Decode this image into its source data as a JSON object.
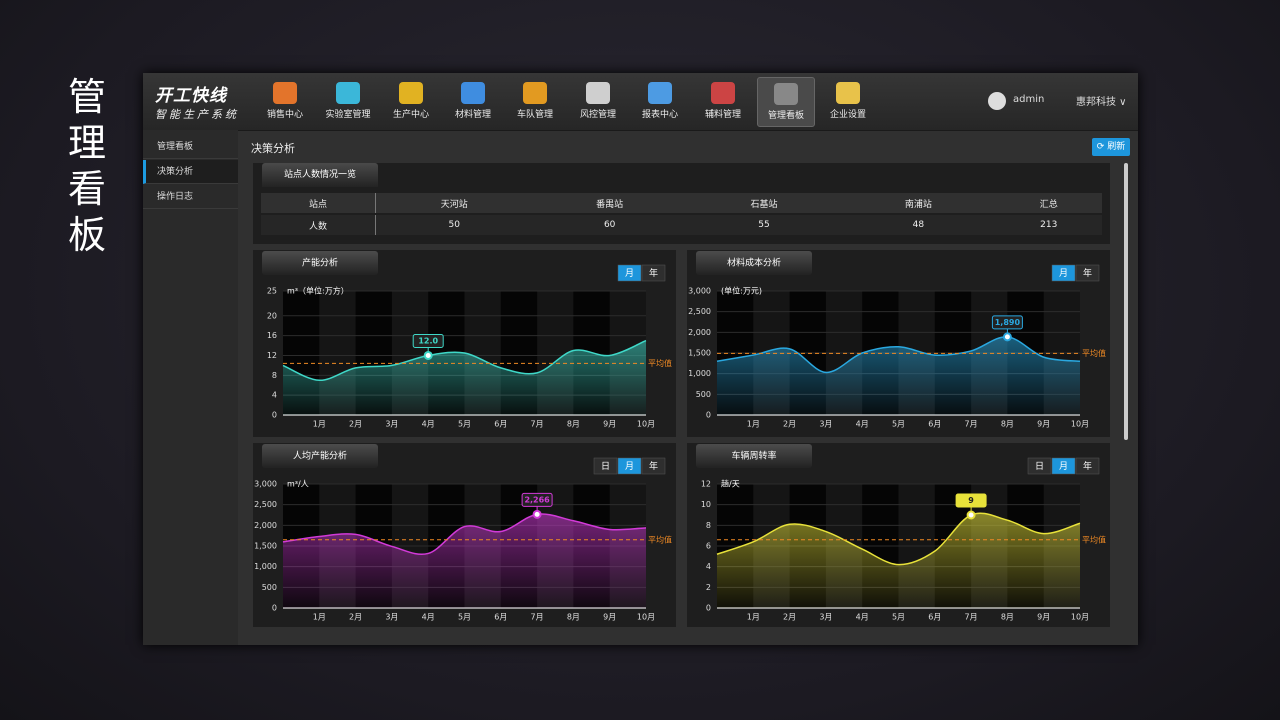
{
  "page_title": "管理看板",
  "nav": {
    "logo": "开工快线",
    "logo_sub": "智能生产系统",
    "items": [
      "销售中心",
      "实验室管理",
      "生产中心",
      "材料管理",
      "车队管理",
      "风控管理",
      "报表中心",
      "辅料管理",
      "管理看板",
      "企业设置"
    ],
    "active": "管理看板",
    "user": "admin",
    "company": "惠邦科技"
  },
  "sidebar": {
    "items": [
      "管理看板",
      "决策分析",
      "操作日志"
    ],
    "active": "决策分析"
  },
  "content_title": "决策分析",
  "refresh": "刷新",
  "table": {
    "title": "站点人数情况一览",
    "header": [
      "站点",
      "天河站",
      "番禺站",
      "石基站",
      "南浦站",
      "汇总"
    ],
    "rows": [
      [
        "人数",
        50,
        60,
        55,
        48,
        213
      ]
    ]
  },
  "chart_data": [
    {
      "type": "area",
      "title": "产能分析",
      "y_label": "m³（单位:万方）",
      "buttons": [
        "月",
        "年"
      ],
      "active_button": "月",
      "categories": [
        null,
        "1月",
        "2月",
        "3月",
        "4月",
        "5月",
        "6月",
        "7月",
        "8月",
        "9月",
        "10月"
      ],
      "values": [
        10,
        7,
        9.5,
        10,
        12,
        12.5,
        9.5,
        8.5,
        13,
        12,
        15
      ],
      "value_labels": [
        null,
        null,
        null,
        null,
        "12.0",
        null,
        null,
        null,
        null,
        null,
        null
      ],
      "color": "#3fd8c8",
      "average": {
        "value": 10.4,
        "label": "平均值"
      },
      "ylim": [
        0,
        25
      ],
      "yticks": [
        0,
        4,
        8,
        12,
        16,
        20,
        25
      ],
      "grid": true
    },
    {
      "type": "area",
      "title": "材料成本分析",
      "y_label": "(单位:万元)",
      "buttons": [
        "月",
        "年"
      ],
      "active_button": "月",
      "categories": [
        null,
        "1月",
        "2月",
        "3月",
        "4月",
        "5月",
        "6月",
        "7月",
        "8月",
        "9月",
        "10月"
      ],
      "values": [
        1300,
        1450,
        1600,
        1030,
        1500,
        1650,
        1450,
        1550,
        1890,
        1400,
        1300
      ],
      "value_labels": [
        null,
        null,
        null,
        null,
        null,
        null,
        null,
        null,
        "1,890",
        null,
        null
      ],
      "color": "#2aa8e0",
      "average": {
        "value": 1490,
        "label": "平均值"
      },
      "ylim": [
        0,
        3000
      ],
      "yticks": [
        0,
        500,
        {
          "value": 1000,
          "label": "1,000"
        },
        {
          "value": 1500,
          "label": "1,500"
        },
        {
          "value": 2000,
          "label": "2,000"
        },
        {
          "value": 2500,
          "label": "2,500"
        },
        {
          "value": 3000,
          "label": "3,000"
        }
      ],
      "grid": true
    },
    {
      "type": "area",
      "title": "人均产能分析",
      "y_label": "m³/人",
      "buttons": [
        "日",
        "月",
        "年"
      ],
      "active_button": "月",
      "categories": [
        null,
        "1月",
        "2月",
        "3月",
        "4月",
        "5月",
        "6月",
        "7月",
        "8月",
        "9月",
        "10月"
      ],
      "values": [
        1600,
        1730,
        1780,
        1490,
        1320,
        1970,
        1850,
        2266,
        2110,
        1900,
        1940
      ],
      "value_labels": [
        null,
        null,
        null,
        null,
        null,
        null,
        null,
        "2,266",
        null,
        null,
        null
      ],
      "color": "#d23ad8",
      "average": {
        "value": 1650,
        "label": "平均值"
      },
      "ylim": [
        0,
        3000
      ],
      "yticks": [
        0,
        500,
        {
          "value": 1000,
          "label": "1,000"
        },
        {
          "value": 1500,
          "label": "1,500"
        },
        {
          "value": 2000,
          "label": "2,000"
        },
        {
          "value": 2500,
          "label": "2,500"
        },
        {
          "value": 3000,
          "label": "3,000"
        }
      ],
      "grid": true
    },
    {
      "type": "area",
      "title": "车辆周转率",
      "y_label": "趟/天",
      "buttons": [
        "日",
        "月",
        "年"
      ],
      "active_button": "月",
      "categories": [
        null,
        "1月",
        "2月",
        "3月",
        "4月",
        "5月",
        "6月",
        "7月",
        "8月",
        "9月",
        "10月"
      ],
      "values": [
        5.2,
        6.4,
        8.1,
        7.4,
        5.7,
        4.2,
        5.5,
        9,
        8.5,
        7.2,
        8.2
      ],
      "color": "#e8e23a",
      "highlight": 7,
      "average": {
        "value": 6.6,
        "label": "平均值"
      },
      "ylim": [
        0,
        12
      ],
      "yticks": [
        0,
        2,
        4,
        6,
        8,
        10,
        12
      ],
      "grid": true
    }
  ]
}
